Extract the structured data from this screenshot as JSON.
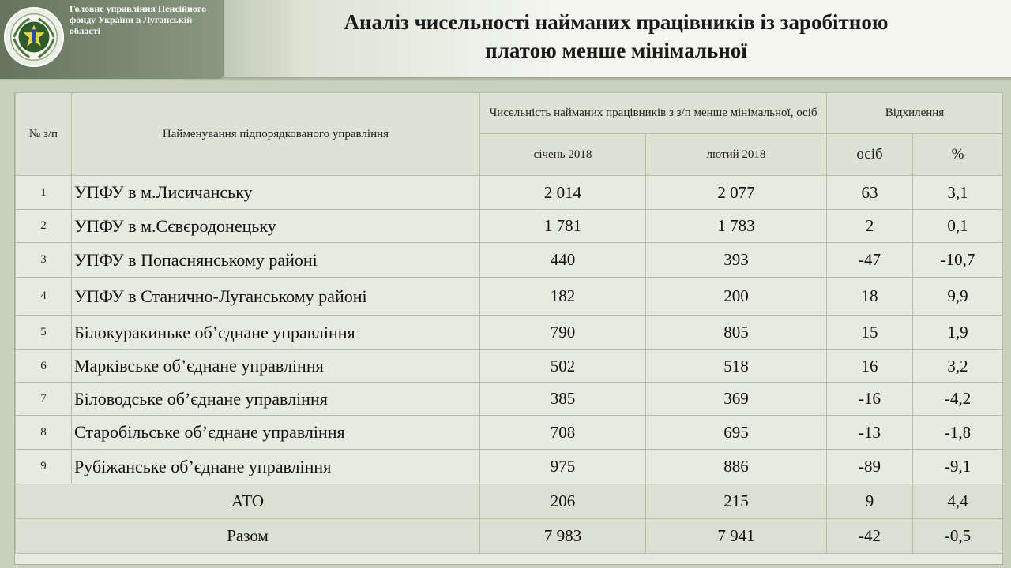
{
  "header": {
    "org_line1": "Головне управління Пенсійного",
    "org_line2": "фонду України в Луганській",
    "org_line3": "області",
    "title_line1": "Аналіз чисельності найманих працівників із заробітною",
    "title_line2": "платою менше мінімальної"
  },
  "colors": {
    "background": "#c7d1bd",
    "badge": "#7a8a72",
    "table_bg": "#e6eadf"
  },
  "table": {
    "headers": {
      "num": "№ з/п",
      "name": "Найменування підпорядкованого управління",
      "count_group": "Чисельність найманих працівників з з/п менше мінімальної, осіб",
      "deviation_group": "Відхилення",
      "jan": "січень 2018",
      "feb": "лютий 2018",
      "persons": "осіб",
      "percent": "%"
    },
    "rows": [
      {
        "num": "1",
        "name": "УПФУ в м.Лисичанську",
        "jan": "2 014",
        "feb": "2 077",
        "dev": "63",
        "pct": "3,1"
      },
      {
        "num": "2",
        "name": "УПФУ в м.Сєвєродонецьку",
        "jan": "1 781",
        "feb": "1 783",
        "dev": "2",
        "pct": "0,1"
      },
      {
        "num": "3",
        "name": "УПФУ в Попаснянському районі",
        "jan": "440",
        "feb": "393",
        "dev": "-47",
        "pct": "-10,7"
      },
      {
        "num": "4",
        "name": "УПФУ в Станично-Луганському районі",
        "jan": "182",
        "feb": "200",
        "dev": "18",
        "pct": "9,9"
      },
      {
        "num": "5",
        "name": "Білокуракиньке об’єднане управління",
        "jan": "790",
        "feb": "805",
        "dev": "15",
        "pct": "1,9"
      },
      {
        "num": "6",
        "name": "Марківське об’єднане управління",
        "jan": "502",
        "feb": "518",
        "dev": "16",
        "pct": "3,2"
      },
      {
        "num": "7",
        "name": "Біловодське об’єднане управління",
        "jan": "385",
        "feb": "369",
        "dev": "-16",
        "pct": "-4,2"
      },
      {
        "num": "8",
        "name": "Старобільське об’єднане управління",
        "jan": "708",
        "feb": "695",
        "dev": "-13",
        "pct": "-1,8"
      },
      {
        "num": "9",
        "name": "Рубіжанське об’єднане управління",
        "jan": "975",
        "feb": "886",
        "dev": "-89",
        "pct": "-9,1"
      }
    ],
    "ato": {
      "label": "АТО",
      "jan": "206",
      "feb": "215",
      "dev": "9",
      "pct": "4,4"
    },
    "total": {
      "label": "Разом",
      "jan": "7 983",
      "feb": "7 941",
      "dev": "-42",
      "pct": "-0,5"
    }
  }
}
